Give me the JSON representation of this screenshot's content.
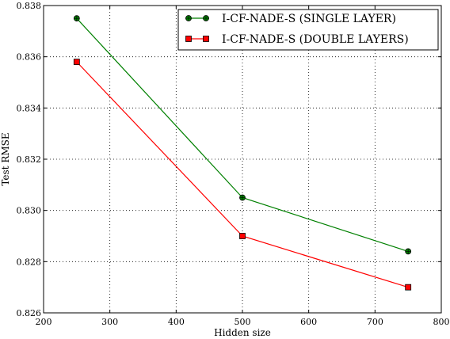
{
  "chart_data": {
    "type": "line",
    "title": "",
    "xlabel": "Hidden size",
    "ylabel": "Test RMSE",
    "xlim": [
      200,
      800
    ],
    "ylim": [
      0.826,
      0.838
    ],
    "xticks": [
      "200",
      "300",
      "400",
      "500",
      "600",
      "700",
      "800"
    ],
    "yticks": [
      "0.826",
      "0.828",
      "0.830",
      "0.832",
      "0.834",
      "0.836",
      "0.838"
    ],
    "grid": true,
    "legend_position": "top-right",
    "x": [
      250,
      500,
      750
    ],
    "series": [
      {
        "name": "I-CF-NADE-S (SINGLE LAYER)",
        "color": "#008000",
        "marker": "circle",
        "values": [
          0.8375,
          0.8305,
          0.8284
        ]
      },
      {
        "name": "I-CF-NADE-S (DOUBLE LAYERS)",
        "color": "#ff0000",
        "marker": "square",
        "values": [
          0.8358,
          0.829,
          0.827
        ]
      }
    ]
  }
}
